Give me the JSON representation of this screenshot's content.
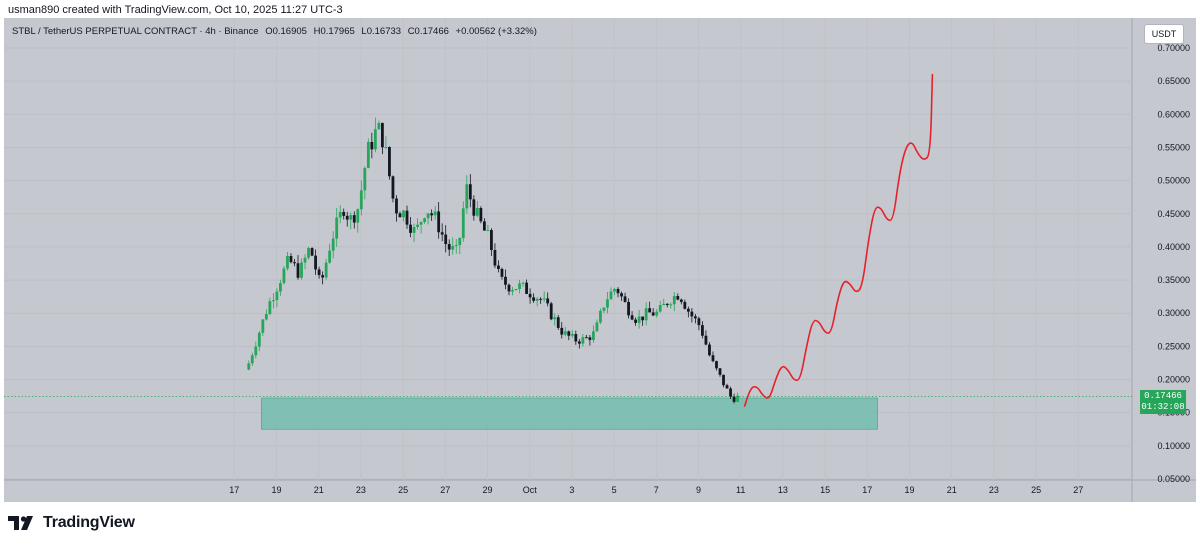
{
  "caption": "usman890 created with TradingView.com, Oct 10, 2025 11:27 UTC-3",
  "legend": {
    "symbol": "STBL / TetherUS PERPETUAL CONTRACT · 4h · Binance",
    "open": "O0.16905",
    "high": "H0.17965",
    "low": "L0.16733",
    "close": "C0.17466",
    "change": "+0.00562 (+3.32%)"
  },
  "quote_currency": "USDT",
  "price_badge": {
    "price": "0.17466",
    "countdown": "01:32:08"
  },
  "logo": "TradingView",
  "colors": {
    "up": "#26a65b",
    "down": "#131722",
    "zone": "#78bfb0",
    "path": "#e8202a"
  },
  "chart_data": {
    "type": "candlestick",
    "ylim": [
      0.05,
      0.7
    ],
    "y_ticks": [
      "0.70000",
      "0.65000",
      "0.60000",
      "0.55000",
      "0.50000",
      "0.45000",
      "0.40000",
      "0.35000",
      "0.30000",
      "0.25000",
      "0.20000",
      "0.15000",
      "0.10000",
      "0.05000"
    ],
    "x_ticks": [
      "17",
      "19",
      "21",
      "23",
      "25",
      "27",
      "29",
      "Oct",
      "3",
      "5",
      "7",
      "9",
      "11",
      "13",
      "15",
      "17",
      "19",
      "21",
      "23",
      "25",
      "27"
    ],
    "price_path": [
      [
        0.0,
        0.215
      ],
      [
        1.0,
        0.31
      ],
      [
        2.0,
        0.38
      ],
      [
        2.5,
        0.36
      ],
      [
        3.0,
        0.4
      ],
      [
        3.5,
        0.34
      ],
      [
        4.0,
        0.41
      ],
      [
        4.6,
        0.46
      ],
      [
        4.9,
        0.44
      ],
      [
        5.3,
        0.46
      ],
      [
        5.7,
        0.54
      ],
      [
        6.2,
        0.58
      ],
      [
        6.5,
        0.56
      ],
      [
        7.0,
        0.46
      ],
      [
        7.5,
        0.45
      ],
      [
        8.0,
        0.42
      ],
      [
        8.5,
        0.46
      ],
      [
        9.0,
        0.44
      ],
      [
        9.5,
        0.4
      ],
      [
        10.0,
        0.39
      ],
      [
        10.4,
        0.49
      ],
      [
        11.0,
        0.44
      ],
      [
        11.5,
        0.41
      ],
      [
        12.0,
        0.35
      ],
      [
        12.5,
        0.34
      ],
      [
        13.0,
        0.34
      ],
      [
        14.0,
        0.32
      ],
      [
        15.0,
        0.27
      ],
      [
        15.5,
        0.26
      ],
      [
        16.0,
        0.26
      ],
      [
        16.5,
        0.27
      ],
      [
        17.0,
        0.32
      ],
      [
        17.5,
        0.34
      ],
      [
        18.0,
        0.31
      ],
      [
        18.5,
        0.29
      ],
      [
        19.0,
        0.3
      ],
      [
        19.5,
        0.3
      ],
      [
        20.0,
        0.32
      ],
      [
        20.5,
        0.33
      ],
      [
        21.0,
        0.3
      ],
      [
        21.5,
        0.28
      ],
      [
        22.0,
        0.23
      ],
      [
        22.5,
        0.2
      ],
      [
        23.0,
        0.17
      ],
      [
        23.3,
        0.174
      ]
    ],
    "support_zone": {
      "from": "Sep 18",
      "to": "Oct 17",
      "low": 0.125,
      "high": 0.172
    },
    "projection": [
      [
        0,
        0.16
      ],
      [
        0.06,
        0.188
      ],
      [
        0.12,
        0.19
      ],
      [
        0.18,
        0.175
      ],
      [
        0.24,
        0.17
      ],
      [
        0.3,
        0.2
      ],
      [
        0.36,
        0.222
      ],
      [
        0.42,
        0.215
      ],
      [
        0.48,
        0.198
      ],
      [
        0.54,
        0.2
      ],
      [
        0.6,
        0.25
      ],
      [
        0.66,
        0.29
      ],
      [
        0.72,
        0.288
      ],
      [
        0.78,
        0.27
      ],
      [
        0.84,
        0.27
      ],
      [
        0.9,
        0.32
      ],
      [
        0.96,
        0.35
      ],
      [
        1.02,
        0.345
      ],
      [
        1.08,
        0.33
      ],
      [
        1.14,
        0.34
      ],
      [
        1.2,
        0.41
      ],
      [
        1.26,
        0.46
      ],
      [
        1.32,
        0.46
      ],
      [
        1.38,
        0.44
      ],
      [
        1.44,
        0.44
      ],
      [
        1.5,
        0.51
      ],
      [
        1.56,
        0.55
      ],
      [
        1.62,
        0.56
      ],
      [
        1.68,
        0.54
      ],
      [
        1.74,
        0.53
      ],
      [
        1.8,
        0.54
      ],
      [
        1.82,
        0.66
      ]
    ],
    "last_price": 0.17466
  }
}
